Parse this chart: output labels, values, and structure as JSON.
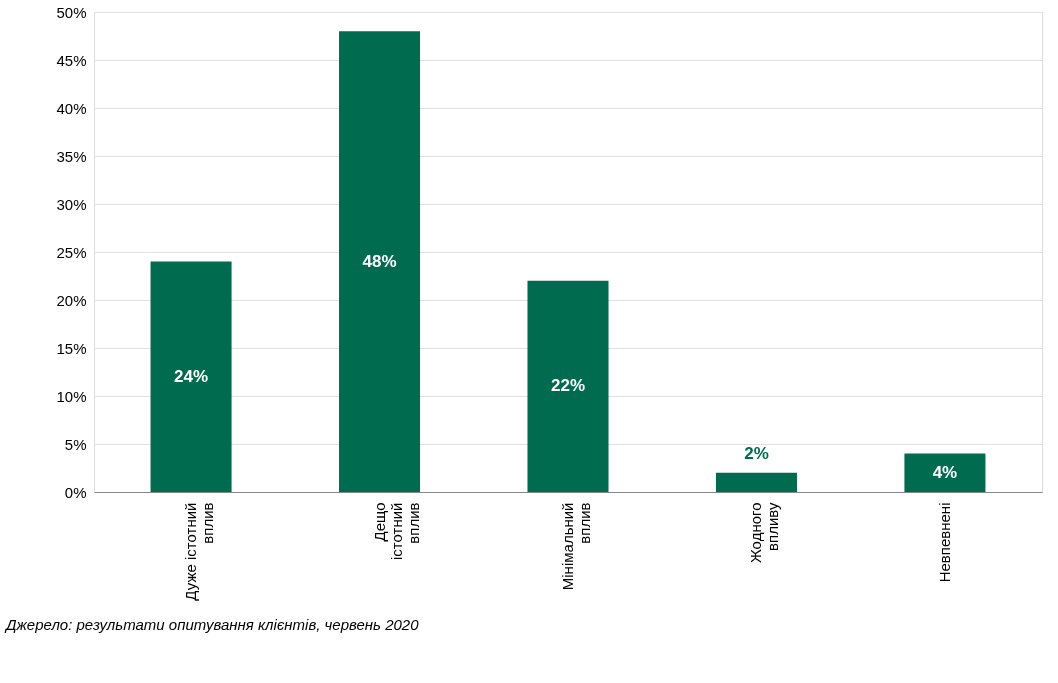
{
  "chart_data": {
    "type": "bar",
    "categories": [
      "Дуже істотний\nвплив",
      "Дещо\nістотний\nвплив",
      "Мінімальний\nвплив",
      "Жодного\nвпливу",
      "Невпевнені"
    ],
    "values": [
      24,
      48,
      22,
      2,
      4
    ],
    "color": "#006b4f",
    "ylim": [
      0,
      50
    ],
    "yticks": [
      {
        "value": 0,
        "label": "0%"
      },
      {
        "value": 5,
        "label": "5%"
      },
      {
        "value": 10,
        "label": "10%"
      },
      {
        "value": 15,
        "label": "15%"
      },
      {
        "value": 20,
        "label": "20%"
      },
      {
        "value": 25,
        "label": "25%"
      },
      {
        "value": 30,
        "label": "30%"
      },
      {
        "value": 35,
        "label": "35%"
      },
      {
        "value": 40,
        "label": "40%"
      },
      {
        "value": 45,
        "label": "45%"
      },
      {
        "value": 50,
        "label": "50%"
      }
    ],
    "grid": "y",
    "value_labels": [
      "24%",
      "48%",
      "22%",
      "2%",
      "4%"
    ],
    "annotations": [
      "Джерело: результати опитування клієнтів, червень 2020"
    ]
  }
}
